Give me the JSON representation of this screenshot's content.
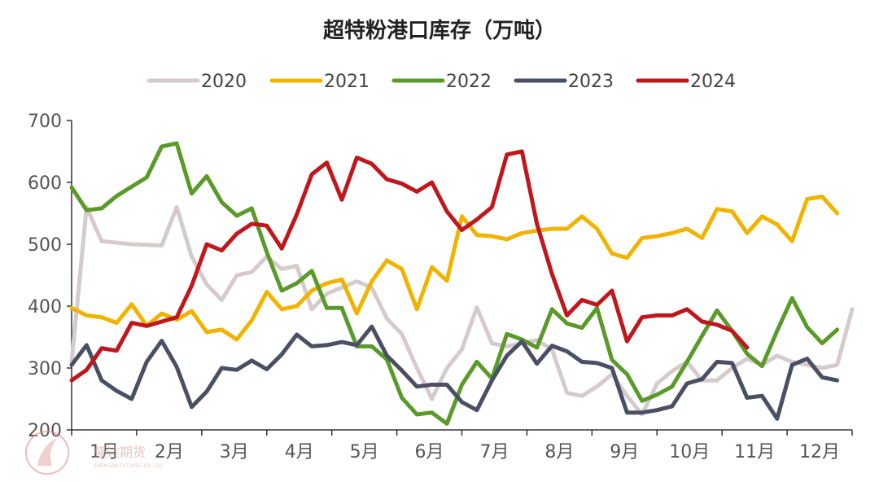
{
  "chart_data": {
    "type": "line",
    "title": "超特粉港口库存（万吨）",
    "xlabel": "",
    "ylabel": "",
    "ylim": [
      200,
      700
    ],
    "yticks": [
      200,
      300,
      400,
      500,
      600,
      700
    ],
    "x_ticks": [
      "1月",
      "2月",
      "3月",
      "4月",
      "5月",
      "6月",
      "7月",
      "8月",
      "9月",
      "10月",
      "11月",
      "12月"
    ],
    "x_range_weeks": [
      1,
      53
    ],
    "grid": false,
    "legend_position": "top",
    "series": [
      {
        "name": "2020",
        "color": "#d5cbcd",
        "values": [
          [
            1,
            310
          ],
          [
            2,
            560
          ],
          [
            3,
            505
          ],
          [
            5,
            500
          ],
          [
            7,
            498
          ],
          [
            8,
            560
          ],
          [
            9,
            480
          ],
          [
            10,
            435
          ],
          [
            11,
            410
          ],
          [
            12,
            450
          ],
          [
            13,
            455
          ],
          [
            14,
            480
          ],
          [
            15,
            460
          ],
          [
            16,
            465
          ],
          [
            17,
            395
          ],
          [
            18,
            420
          ],
          [
            19,
            430
          ],
          [
            20,
            440
          ],
          [
            21,
            430
          ],
          [
            22,
            380
          ],
          [
            23,
            355
          ],
          [
            24,
            300
          ],
          [
            25,
            250
          ],
          [
            26,
            300
          ],
          [
            27,
            330
          ],
          [
            28,
            398
          ],
          [
            29,
            340
          ],
          [
            30,
            335
          ],
          [
            31,
            340
          ],
          [
            32,
            345
          ],
          [
            33,
            330
          ],
          [
            34,
            260
          ],
          [
            35,
            255
          ],
          [
            36,
            270
          ],
          [
            37,
            290
          ],
          [
            38,
            255
          ],
          [
            39,
            225
          ],
          [
            40,
            275
          ],
          [
            41,
            295
          ],
          [
            42,
            310
          ],
          [
            43,
            280
          ],
          [
            44,
            280
          ],
          [
            45,
            300
          ],
          [
            46,
            315
          ],
          [
            47,
            305
          ],
          [
            48,
            320
          ],
          [
            49,
            310
          ],
          [
            50,
            305
          ],
          [
            51,
            300
          ],
          [
            52,
            305
          ],
          [
            53,
            395
          ]
        ]
      },
      {
        "name": "2021",
        "color": "#f0b400",
        "values": [
          [
            1,
            397
          ],
          [
            2,
            385
          ],
          [
            3,
            382
          ],
          [
            4,
            373
          ],
          [
            5,
            403
          ],
          [
            6,
            368
          ],
          [
            7,
            388
          ],
          [
            8,
            378
          ],
          [
            9,
            392
          ],
          [
            10,
            358
          ],
          [
            11,
            362
          ],
          [
            12,
            346
          ],
          [
            13,
            377
          ],
          [
            14,
            423
          ],
          [
            15,
            395
          ],
          [
            16,
            400
          ],
          [
            17,
            425
          ],
          [
            18,
            437
          ],
          [
            19,
            443
          ],
          [
            20,
            388
          ],
          [
            21,
            440
          ],
          [
            22,
            474
          ],
          [
            23,
            460
          ],
          [
            24,
            395
          ],
          [
            25,
            463
          ],
          [
            26,
            441
          ],
          [
            27,
            545
          ],
          [
            28,
            515
          ],
          [
            29,
            513
          ],
          [
            30,
            508
          ],
          [
            31,
            518
          ],
          [
            32,
            522
          ],
          [
            33,
            525
          ],
          [
            34,
            525
          ],
          [
            35,
            545
          ],
          [
            36,
            525
          ],
          [
            37,
            485
          ],
          [
            38,
            478
          ],
          [
            39,
            510
          ],
          [
            40,
            513
          ],
          [
            41,
            518
          ],
          [
            42,
            525
          ],
          [
            43,
            510
          ],
          [
            44,
            557
          ],
          [
            45,
            553
          ],
          [
            46,
            518
          ],
          [
            47,
            545
          ],
          [
            48,
            532
          ],
          [
            49,
            505
          ],
          [
            50,
            573
          ],
          [
            51,
            577
          ],
          [
            52,
            550
          ]
        ]
      },
      {
        "name": "2022",
        "color": "#5a9a2a",
        "values": [
          [
            1,
            592
          ],
          [
            2,
            555
          ],
          [
            3,
            558
          ],
          [
            4,
            578
          ],
          [
            5,
            593
          ],
          [
            6,
            608
          ],
          [
            7,
            658
          ],
          [
            8,
            663
          ],
          [
            9,
            582
          ],
          [
            10,
            610
          ],
          [
            11,
            568
          ],
          [
            12,
            546
          ],
          [
            13,
            558
          ],
          [
            14,
            487
          ],
          [
            15,
            425
          ],
          [
            16,
            437
          ],
          [
            17,
            457
          ],
          [
            18,
            397
          ],
          [
            19,
            397
          ],
          [
            20,
            335
          ],
          [
            21,
            335
          ],
          [
            22,
            314
          ],
          [
            23,
            252
          ],
          [
            24,
            225
          ],
          [
            25,
            228
          ],
          [
            26,
            210
          ],
          [
            27,
            273
          ],
          [
            28,
            310
          ],
          [
            29,
            283
          ],
          [
            30,
            355
          ],
          [
            31,
            346
          ],
          [
            32,
            333
          ],
          [
            33,
            395
          ],
          [
            34,
            372
          ],
          [
            35,
            365
          ],
          [
            36,
            397
          ],
          [
            37,
            313
          ],
          [
            38,
            290
          ],
          [
            39,
            247
          ],
          [
            40,
            257
          ],
          [
            41,
            270
          ],
          [
            42,
            310
          ],
          [
            43,
            352
          ],
          [
            44,
            393
          ],
          [
            45,
            360
          ],
          [
            46,
            323
          ],
          [
            47,
            303
          ],
          [
            48,
            360
          ],
          [
            49,
            413
          ],
          [
            50,
            366
          ],
          [
            51,
            340
          ],
          [
            52,
            362
          ]
        ]
      },
      {
        "name": "2023",
        "color": "#4a4f63",
        "values": [
          [
            1,
            305
          ],
          [
            2,
            337
          ],
          [
            3,
            280
          ],
          [
            4,
            263
          ],
          [
            5,
            250
          ],
          [
            6,
            310
          ],
          [
            7,
            344
          ],
          [
            8,
            302
          ],
          [
            9,
            237
          ],
          [
            10,
            262
          ],
          [
            11,
            300
          ],
          [
            12,
            297
          ],
          [
            13,
            312
          ],
          [
            14,
            298
          ],
          [
            15,
            322
          ],
          [
            16,
            354
          ],
          [
            17,
            335
          ],
          [
            18,
            337
          ],
          [
            19,
            342
          ],
          [
            20,
            337
          ],
          [
            21,
            367
          ],
          [
            22,
            320
          ],
          [
            23,
            296
          ],
          [
            24,
            270
          ],
          [
            25,
            273
          ],
          [
            26,
            273
          ],
          [
            27,
            245
          ],
          [
            28,
            232
          ],
          [
            29,
            280
          ],
          [
            30,
            320
          ],
          [
            31,
            343
          ],
          [
            32,
            307
          ],
          [
            33,
            336
          ],
          [
            34,
            327
          ],
          [
            35,
            310
          ],
          [
            36,
            308
          ],
          [
            37,
            300
          ],
          [
            38,
            228
          ],
          [
            39,
            228
          ],
          [
            40,
            232
          ],
          [
            41,
            238
          ],
          [
            42,
            275
          ],
          [
            43,
            282
          ],
          [
            44,
            310
          ],
          [
            45,
            308
          ],
          [
            46,
            252
          ],
          [
            47,
            255
          ],
          [
            48,
            218
          ],
          [
            49,
            305
          ],
          [
            50,
            315
          ],
          [
            51,
            285
          ],
          [
            52,
            280
          ]
        ]
      },
      {
        "name": "2024",
        "color": "#c0171d",
        "values": [
          [
            1,
            280
          ],
          [
            2,
            297
          ],
          [
            3,
            332
          ],
          [
            4,
            328
          ],
          [
            5,
            373
          ],
          [
            6,
            368
          ],
          [
            7,
            375
          ],
          [
            8,
            382
          ],
          [
            9,
            433
          ],
          [
            10,
            500
          ],
          [
            11,
            490
          ],
          [
            12,
            517
          ],
          [
            13,
            533
          ],
          [
            14,
            530
          ],
          [
            15,
            493
          ],
          [
            16,
            548
          ],
          [
            17,
            613
          ],
          [
            18,
            632
          ],
          [
            19,
            572
          ],
          [
            20,
            640
          ],
          [
            21,
            630
          ],
          [
            22,
            605
          ],
          [
            23,
            598
          ],
          [
            24,
            585
          ],
          [
            25,
            600
          ],
          [
            26,
            553
          ],
          [
            27,
            523
          ],
          [
            28,
            540
          ],
          [
            29,
            560
          ],
          [
            30,
            645
          ],
          [
            31,
            650
          ],
          [
            32,
            533
          ],
          [
            33,
            452
          ],
          [
            34,
            385
          ],
          [
            35,
            410
          ],
          [
            36,
            402
          ],
          [
            37,
            425
          ],
          [
            38,
            343
          ],
          [
            39,
            382
          ],
          [
            40,
            385
          ],
          [
            41,
            385
          ],
          [
            42,
            395
          ],
          [
            43,
            375
          ],
          [
            44,
            370
          ],
          [
            45,
            360
          ],
          [
            46,
            333
          ]
        ]
      }
    ]
  },
  "watermark": {
    "text": "盛达期货",
    "subtext": "SHENGDA FUTURES CO.,LTD"
  }
}
